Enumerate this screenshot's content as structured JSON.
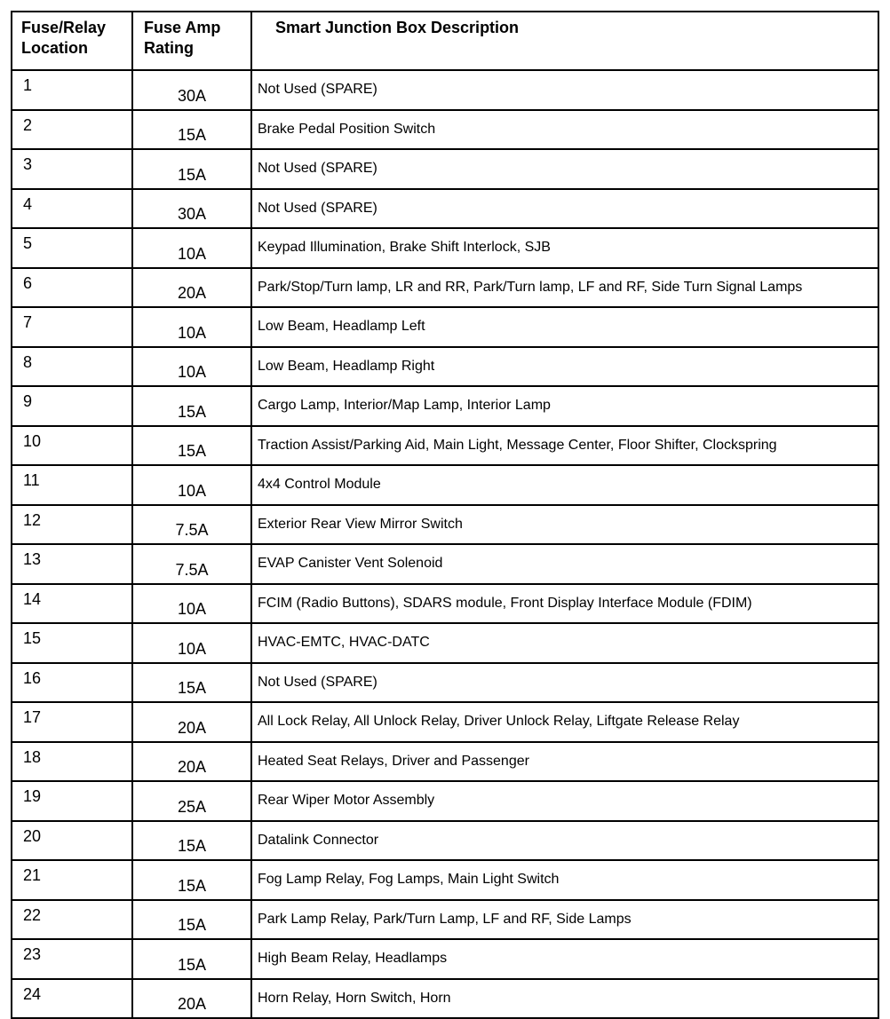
{
  "table": {
    "headers": [
      "Fuse/Relay Location",
      "Fuse Amp Rating",
      "Smart Junction Box Description"
    ],
    "rows": [
      [
        "1",
        "30A",
        "Not Used (SPARE)"
      ],
      [
        "2",
        "15A",
        "Brake Pedal Position Switch"
      ],
      [
        "3",
        "15A",
        "Not Used (SPARE)"
      ],
      [
        "4",
        "30A",
        "Not Used (SPARE)"
      ],
      [
        "5",
        "10A",
        "Keypad Illumination, Brake Shift Interlock, SJB"
      ],
      [
        "6",
        "20A",
        "Park/Stop/Turn lamp, LR and RR, Park/Turn lamp, LF and RF, Side Turn Signal Lamps"
      ],
      [
        "7",
        "10A",
        "Low Beam, Headlamp Left"
      ],
      [
        "8",
        "10A",
        "Low Beam, Headlamp Right"
      ],
      [
        "9",
        "15A",
        "Cargo Lamp, Interior/Map Lamp, Interior Lamp"
      ],
      [
        "10",
        "15A",
        "Traction Assist/Parking Aid, Main Light, Message Center, Floor Shifter, Clockspring"
      ],
      [
        "11",
        "10A",
        "4x4 Control Module"
      ],
      [
        "12",
        "7.5A",
        "Exterior Rear View Mirror Switch"
      ],
      [
        "13",
        "7.5A",
        "EVAP Canister Vent Solenoid"
      ],
      [
        "14",
        "10A",
        "FCIM (Radio Buttons), SDARS module, Front Display Interface Module (FDIM)"
      ],
      [
        "15",
        "10A",
        "HVAC-EMTC, HVAC-DATC"
      ],
      [
        "16",
        "15A",
        "Not Used (SPARE)"
      ],
      [
        "17",
        "20A",
        "All Lock Relay, All Unlock Relay, Driver Unlock Relay, Liftgate Release Relay"
      ],
      [
        "18",
        "20A",
        "Heated Seat Relays, Driver and Passenger"
      ],
      [
        "19",
        "25A",
        "Rear Wiper Motor Assembly"
      ],
      [
        "20",
        "15A",
        "Datalink Connector"
      ],
      [
        "21",
        "15A",
        "Fog Lamp Relay, Fog Lamps, Main Light Switch"
      ],
      [
        "22",
        "15A",
        "Park Lamp Relay, Park/Turn Lamp, LF and RF, Side Lamps"
      ],
      [
        "23",
        "15A",
        "High Beam Relay, Headlamps"
      ],
      [
        "24",
        "20A",
        "Horn Relay, Horn Switch, Horn"
      ]
    ]
  }
}
